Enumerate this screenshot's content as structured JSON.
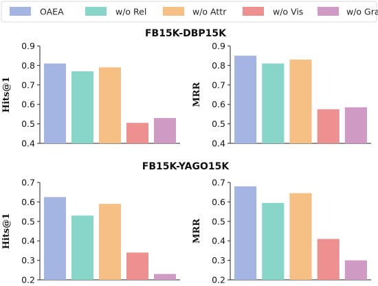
{
  "legend": {
    "placement": "top",
    "items": [
      {
        "name": "OAEA",
        "color": "#a4b5e3"
      },
      {
        "name": "w/o Rel",
        "color": "#88d5c9"
      },
      {
        "name": "w/o Attr",
        "color": "#f6bf84"
      },
      {
        "name": "w/o Vis",
        "color": "#ef9090"
      },
      {
        "name": "w/o Graph",
        "color": "#cf9ac4"
      }
    ]
  },
  "group_titles": [
    "FB15K-DBP15K",
    "FB15K-YAGO15K"
  ],
  "chart_data": [
    {
      "type": "bar",
      "group": "FB15K-DBP15K",
      "title": "",
      "xlabel": "",
      "ylabel": "Hits@1",
      "ylim": [
        0.4,
        0.9
      ],
      "yticks": [
        "0.4",
        "0.5",
        "0.6",
        "0.7",
        "0.8",
        "0.9"
      ],
      "grid": false,
      "series": [
        {
          "name": "OAEA",
          "value": 0.81
        },
        {
          "name": "w/o Rel",
          "value": 0.77
        },
        {
          "name": "w/o Attr",
          "value": 0.79
        },
        {
          "name": "w/o Vis",
          "value": 0.505
        },
        {
          "name": "w/o Graph",
          "value": 0.53
        }
      ]
    },
    {
      "type": "bar",
      "group": "FB15K-DBP15K",
      "title": "",
      "xlabel": "",
      "ylabel": "MRR",
      "ylim": [
        0.4,
        0.9
      ],
      "yticks": [
        "0.4",
        "0.5",
        "0.6",
        "0.7",
        "0.8",
        "0.9"
      ],
      "grid": false,
      "series": [
        {
          "name": "OAEA",
          "value": 0.85
        },
        {
          "name": "w/o Rel",
          "value": 0.81
        },
        {
          "name": "w/o Attr",
          "value": 0.83
        },
        {
          "name": "w/o Vis",
          "value": 0.575
        },
        {
          "name": "w/o Graph",
          "value": 0.585
        }
      ]
    },
    {
      "type": "bar",
      "group": "FB15K-YAGO15K",
      "title": "",
      "xlabel": "",
      "ylabel": "Hits@1",
      "ylim": [
        0.2,
        0.7
      ],
      "yticks": [
        "0.2",
        "0.3",
        "0.4",
        "0.5",
        "0.6",
        "0.7"
      ],
      "grid": false,
      "series": [
        {
          "name": "OAEA",
          "value": 0.625
        },
        {
          "name": "w/o Rel",
          "value": 0.53
        },
        {
          "name": "w/o Attr",
          "value": 0.59
        },
        {
          "name": "w/o Vis",
          "value": 0.34
        },
        {
          "name": "w/o Graph",
          "value": 0.23
        }
      ]
    },
    {
      "type": "bar",
      "group": "FB15K-YAGO15K",
      "title": "",
      "xlabel": "",
      "ylabel": "MRR",
      "ylim": [
        0.2,
        0.7
      ],
      "yticks": [
        "0.2",
        "0.3",
        "0.4",
        "0.5",
        "0.6",
        "0.7"
      ],
      "grid": false,
      "series": [
        {
          "name": "OAEA",
          "value": 0.68
        },
        {
          "name": "w/o Rel",
          "value": 0.595
        },
        {
          "name": "w/o Attr",
          "value": 0.645
        },
        {
          "name": "w/o Vis",
          "value": 0.41
        },
        {
          "name": "w/o Graph",
          "value": 0.3
        }
      ]
    }
  ]
}
